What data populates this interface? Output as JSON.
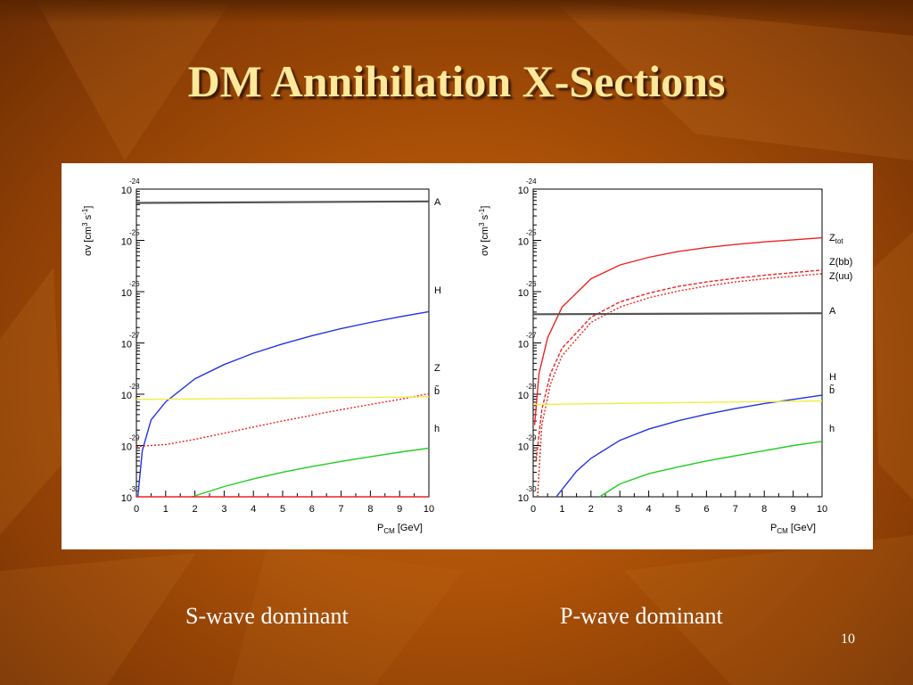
{
  "slide": {
    "title": "DM Annihilation X-Sections",
    "captions": [
      "S-wave dominant",
      "P-wave dominant"
    ],
    "page_number": "10"
  },
  "colors": {
    "title": "#ffe89a",
    "background": "#ad5208",
    "A": "#555555",
    "H": "#2233dd",
    "Z": "#ee2222",
    "b": "#eeee44",
    "h": "#22cc22"
  },
  "chart_data": [
    {
      "type": "line",
      "title": "",
      "xlabel": "P_CM [GeV]",
      "ylabel": "σv [cm^3 s^-1]",
      "xlim": [
        0,
        10
      ],
      "ylim_exp": [
        -30,
        -24
      ],
      "y_scale": "log",
      "xticks": [
        "0",
        "1",
        "2",
        "3",
        "4",
        "5",
        "6",
        "7",
        "8",
        "9",
        "10"
      ],
      "yticks_exp": [
        "-24",
        "-25",
        "-26",
        "-27",
        "-28",
        "-29",
        "-30"
      ],
      "series": [
        {
          "name": "A",
          "color": "#555555",
          "style": "solid",
          "x": [
            0,
            10
          ],
          "log10": [
            -24.27,
            -24.24
          ]
        },
        {
          "name": "H",
          "color": "#2233dd",
          "style": "solid",
          "x": [
            0.05,
            0.2,
            0.5,
            1,
            2,
            3,
            4,
            5,
            6,
            7,
            8,
            9,
            10
          ],
          "log10": [
            -30.0,
            -29.1,
            -28.5,
            -28.15,
            -27.7,
            -27.42,
            -27.2,
            -27.02,
            -26.86,
            -26.72,
            -26.6,
            -26.49,
            -26.39
          ]
        },
        {
          "name": "Z",
          "color": "#ee2222",
          "style": "dotted",
          "x": [
            0,
            1,
            2,
            3,
            4,
            5,
            6,
            7,
            8,
            9,
            10
          ],
          "log10": [
            -29.02,
            -28.98,
            -28.88,
            -28.76,
            -28.64,
            -28.52,
            -28.41,
            -28.3,
            -28.2,
            -28.1,
            -27.99
          ]
        },
        {
          "name": "b̃",
          "color": "#eeee44",
          "style": "solid",
          "x": [
            0,
            10
          ],
          "log10": [
            -28.1,
            -28.05
          ]
        },
        {
          "name": "h",
          "color": "#22cc22",
          "style": "solid",
          "x": [
            1.9,
            3,
            4,
            5,
            6,
            7,
            8,
            9,
            10
          ],
          "log10": [
            -30.0,
            -29.8,
            -29.65,
            -29.52,
            -29.41,
            -29.31,
            -29.22,
            -29.13,
            -29.05
          ]
        },
        {
          "name": "",
          "color": "#ee2222",
          "style": "solid",
          "x": [
            0,
            10
          ],
          "log10": [
            -30.0,
            -30.0
          ]
        }
      ],
      "labels": [
        "A",
        "H",
        "Z",
        "b̃",
        "h"
      ]
    },
    {
      "type": "line",
      "title": "",
      "xlabel": "P_CM [GeV]",
      "ylabel": "σv [cm^3 s^-1]",
      "xlim": [
        0,
        10
      ],
      "ylim_exp": [
        -30,
        -24
      ],
      "y_scale": "log",
      "xticks": [
        "0",
        "1",
        "2",
        "3",
        "4",
        "5",
        "6",
        "7",
        "8",
        "9",
        "10"
      ],
      "yticks_exp": [
        "-24",
        "-25",
        "-26",
        "-27",
        "-28",
        "-29",
        "-30"
      ],
      "series": [
        {
          "name": "Z_tot",
          "color": "#ee2222",
          "style": "solid",
          "x": [
            0.05,
            0.2,
            0.5,
            1,
            2,
            3,
            4,
            5,
            6,
            7,
            8,
            9,
            10
          ],
          "log10": [
            -28.6,
            -27.6,
            -26.9,
            -26.3,
            -25.75,
            -25.48,
            -25.33,
            -25.22,
            -25.14,
            -25.08,
            -25.03,
            -24.99,
            -24.95
          ]
        },
        {
          "name": "Z(bb)",
          "color": "#ee2222",
          "style": "dashed",
          "x": [
            0.1,
            0.3,
            0.6,
            1,
            2,
            3,
            4,
            5,
            6,
            7,
            8,
            9,
            10
          ],
          "log10": [
            -29.3,
            -28.3,
            -27.6,
            -27.1,
            -26.5,
            -26.2,
            -26.03,
            -25.9,
            -25.81,
            -25.74,
            -25.68,
            -25.63,
            -25.58
          ]
        },
        {
          "name": "Z(uu)",
          "color": "#ee2222",
          "style": "dotted",
          "x": [
            0.15,
            0.3,
            0.6,
            1,
            2,
            3,
            4,
            5,
            6,
            7,
            8,
            9,
            10
          ],
          "log10": [
            -30.0,
            -28.6,
            -27.8,
            -27.25,
            -26.6,
            -26.3,
            -26.12,
            -25.99,
            -25.89,
            -25.81,
            -25.75,
            -25.7,
            -25.65
          ]
        },
        {
          "name": "A",
          "color": "#555555",
          "style": "solid",
          "x": [
            0,
            10
          ],
          "log10": [
            -26.44,
            -26.42
          ]
        },
        {
          "name": "H",
          "color": "#2233dd",
          "style": "solid",
          "x": [
            0.8,
            1.5,
            2,
            3,
            4,
            5,
            6,
            7,
            8,
            9,
            10
          ],
          "log10": [
            -30.0,
            -29.5,
            -29.25,
            -28.9,
            -28.68,
            -28.52,
            -28.39,
            -28.28,
            -28.18,
            -28.1,
            -28.02
          ]
        },
        {
          "name": "b̃",
          "color": "#eeee44",
          "style": "solid",
          "x": [
            0,
            10
          ],
          "log10": [
            -28.2,
            -28.13
          ]
        },
        {
          "name": "h",
          "color": "#22cc22",
          "style": "solid",
          "x": [
            2.3,
            3,
            4,
            5,
            6,
            7,
            8,
            9,
            10
          ],
          "log10": [
            -30.0,
            -29.75,
            -29.55,
            -29.42,
            -29.3,
            -29.2,
            -29.1,
            -29.0,
            -28.92
          ]
        }
      ],
      "labels": [
        "Z_tot",
        "Z(bb)",
        "Z(uu)",
        "A",
        "H",
        "b̃",
        "h"
      ]
    }
  ]
}
